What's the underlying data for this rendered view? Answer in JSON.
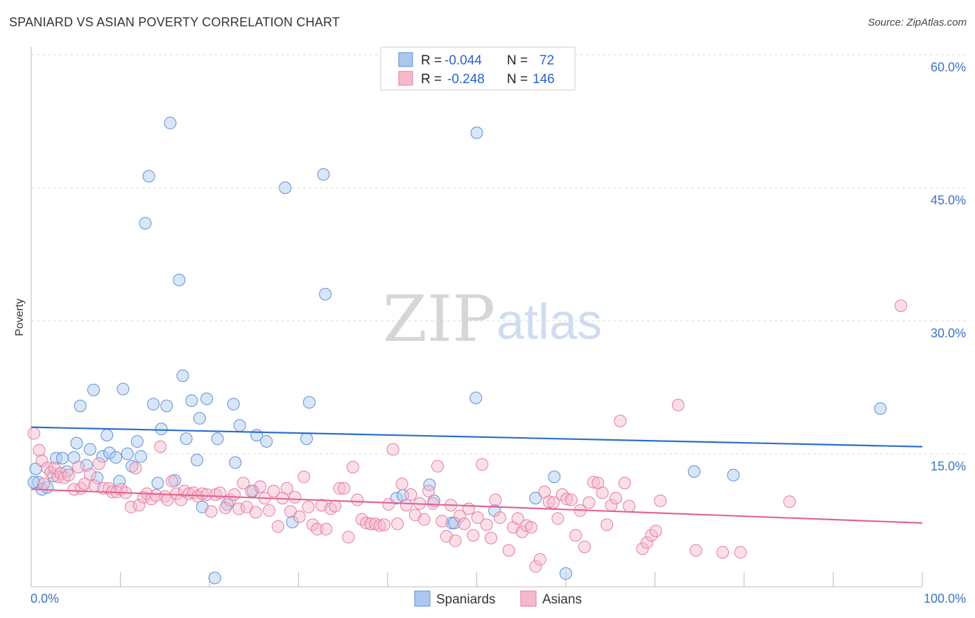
{
  "header": {
    "title": "SPANIARD VS ASIAN POVERTY CORRELATION CHART",
    "source": "Source: ZipAtlas.com"
  },
  "watermark": {
    "zip": "ZIP",
    "atlas": "atlas"
  },
  "colors": {
    "spaniards_fill": "#a9c7ef",
    "spaniards_stroke": "#5e8fd6",
    "spaniards_line": "#2a6dcc",
    "asians_fill": "#f6b9cb",
    "asians_stroke": "#e57b9e",
    "asians_line": "#e2658f",
    "tick_label": "#3b73c8",
    "grid": "#d9d9d9"
  },
  "legend": {
    "rows": [
      {
        "series": "spaniards",
        "r_label": "R =",
        "r_value": "-0.044",
        "n_label": "N =",
        "n_value": "72"
      },
      {
        "series": "asians",
        "r_label": "R =",
        "r_value": "-0.248",
        "n_label": "N =",
        "n_value": "146"
      }
    ]
  },
  "chart_data": {
    "type": "scatter",
    "title": "SPANIARD VS ASIAN POVERTY CORRELATION CHART",
    "xlabel": "",
    "ylabel": "Poverty",
    "xlim": [
      0,
      100
    ],
    "ylim": [
      0,
      60
    ],
    "x_tick_labels": [
      "0.0%",
      "100.0%"
    ],
    "y_tick_labels": [
      "15.0%",
      "30.0%",
      "45.0%",
      "60.0%"
    ],
    "y_ticks": [
      15,
      30,
      45,
      60
    ],
    "grid": true,
    "legend_position": "top-center",
    "bottom_legend": [
      "Spaniards",
      "Asians"
    ],
    "series": [
      {
        "name": "Spaniards",
        "color": "#a9c7ef",
        "trend": {
          "x": [
            0,
            100
          ],
          "y": [
            18.0,
            15.8
          ]
        },
        "points": [
          [
            0.5,
            13.3
          ],
          [
            0.8,
            11.8
          ],
          [
            1.2,
            11.0
          ],
          [
            1.8,
            11.2
          ],
          [
            2.5,
            12.5
          ],
          [
            2.8,
            14.5
          ],
          [
            3.5,
            14.5
          ],
          [
            4.0,
            13.0
          ],
          [
            4.8,
            14.6
          ],
          [
            5.1,
            16.2
          ],
          [
            5.5,
            20.4
          ],
          [
            6.2,
            13.7
          ],
          [
            6.6,
            15.5
          ],
          [
            7.0,
            22.2
          ],
          [
            7.4,
            12.3
          ],
          [
            8.0,
            14.7
          ],
          [
            8.5,
            17.1
          ],
          [
            8.8,
            15.1
          ],
          [
            9.5,
            14.6
          ],
          [
            9.9,
            11.9
          ],
          [
            10.3,
            22.3
          ],
          [
            10.8,
            15.0
          ],
          [
            11.3,
            13.6
          ],
          [
            11.9,
            16.4
          ],
          [
            12.3,
            14.7
          ],
          [
            12.8,
            41.0
          ],
          [
            13.2,
            46.3
          ],
          [
            13.7,
            20.6
          ],
          [
            14.2,
            11.7
          ],
          [
            14.6,
            17.8
          ],
          [
            15.2,
            20.4
          ],
          [
            15.6,
            52.3
          ],
          [
            16.1,
            12.0
          ],
          [
            16.6,
            34.6
          ],
          [
            17.0,
            23.8
          ],
          [
            17.4,
            16.7
          ],
          [
            18.0,
            21.0
          ],
          [
            18.6,
            14.3
          ],
          [
            18.9,
            19.0
          ],
          [
            19.2,
            9.0
          ],
          [
            19.7,
            21.2
          ],
          [
            20.6,
            1.0
          ],
          [
            20.9,
            16.7
          ],
          [
            22.0,
            9.3
          ],
          [
            22.7,
            20.6
          ],
          [
            22.9,
            14.0
          ],
          [
            23.4,
            18.2
          ],
          [
            24.9,
            10.8
          ],
          [
            25.3,
            17.1
          ],
          [
            26.4,
            16.4
          ],
          [
            28.5,
            45.0
          ],
          [
            29.3,
            7.3
          ],
          [
            30.9,
            16.7
          ],
          [
            31.2,
            20.8
          ],
          [
            32.8,
            46.5
          ],
          [
            33.0,
            33.0
          ],
          [
            41.0,
            10.0
          ],
          [
            41.7,
            10.3
          ],
          [
            44.7,
            11.5
          ],
          [
            45.2,
            9.7
          ],
          [
            47.2,
            7.2
          ],
          [
            47.5,
            7.2
          ],
          [
            49.9,
            21.3
          ],
          [
            50.0,
            51.2
          ],
          [
            52.0,
            8.6
          ],
          [
            56.6,
            10.0
          ],
          [
            58.7,
            12.4
          ],
          [
            60.0,
            1.5
          ],
          [
            74.4,
            13.0
          ],
          [
            78.8,
            12.6
          ],
          [
            95.3,
            20.1
          ],
          [
            0.3,
            11.8
          ]
        ]
      },
      {
        "name": "Asians",
        "color": "#f6b9cb",
        "trend": {
          "x": [
            0,
            100
          ],
          "y": [
            11.0,
            7.2
          ]
        },
        "points": [
          [
            0.3,
            17.3
          ],
          [
            0.9,
            15.4
          ],
          [
            1.2,
            14.2
          ],
          [
            1.4,
            11.6
          ],
          [
            1.8,
            13.4
          ],
          [
            2.2,
            12.9
          ],
          [
            2.6,
            13.4
          ],
          [
            3.0,
            12.4
          ],
          [
            3.3,
            12.8
          ],
          [
            3.7,
            12.3
          ],
          [
            4.2,
            12.6
          ],
          [
            4.8,
            11.0
          ],
          [
            5.3,
            13.5
          ],
          [
            5.6,
            11.1
          ],
          [
            6.0,
            11.6
          ],
          [
            6.6,
            12.7
          ],
          [
            7.1,
            11.4
          ],
          [
            7.6,
            13.9
          ],
          [
            8.1,
            11.1
          ],
          [
            8.7,
            11.1
          ],
          [
            9.1,
            10.7
          ],
          [
            9.6,
            10.7
          ],
          [
            10.1,
            11.0
          ],
          [
            10.6,
            10.6
          ],
          [
            11.2,
            9.0
          ],
          [
            11.7,
            13.4
          ],
          [
            12.1,
            9.2
          ],
          [
            12.6,
            10.1
          ],
          [
            13.0,
            10.5
          ],
          [
            13.5,
            9.9
          ],
          [
            14.0,
            10.3
          ],
          [
            14.5,
            15.8
          ],
          [
            15.0,
            10.2
          ],
          [
            15.3,
            9.8
          ],
          [
            15.8,
            11.9
          ],
          [
            16.3,
            10.5
          ],
          [
            16.8,
            9.8
          ],
          [
            17.2,
            10.8
          ],
          [
            17.7,
            10.5
          ],
          [
            18.2,
            10.6
          ],
          [
            18.7,
            10.2
          ],
          [
            19.2,
            10.5
          ],
          [
            19.7,
            10.4
          ],
          [
            20.2,
            8.5
          ],
          [
            20.7,
            10.4
          ],
          [
            21.2,
            10.6
          ],
          [
            21.8,
            8.9
          ],
          [
            22.3,
            9.8
          ],
          [
            22.8,
            10.4
          ],
          [
            23.3,
            8.8
          ],
          [
            23.8,
            11.7
          ],
          [
            24.2,
            9.0
          ],
          [
            24.7,
            10.8
          ],
          [
            25.2,
            8.4
          ],
          [
            25.7,
            11.3
          ],
          [
            26.2,
            10.0
          ],
          [
            26.7,
            8.6
          ],
          [
            27.2,
            10.8
          ],
          [
            27.7,
            6.8
          ],
          [
            28.2,
            10.0
          ],
          [
            28.7,
            11.1
          ],
          [
            29.1,
            8.5
          ],
          [
            29.6,
            10.1
          ],
          [
            30.1,
            7.9
          ],
          [
            30.6,
            12.4
          ],
          [
            31.1,
            9.0
          ],
          [
            31.6,
            7.0
          ],
          [
            32.1,
            6.5
          ],
          [
            32.6,
            9.2
          ],
          [
            33.1,
            6.5
          ],
          [
            33.6,
            8.8
          ],
          [
            34.1,
            9.1
          ],
          [
            34.6,
            11.1
          ],
          [
            35.1,
            11.1
          ],
          [
            35.6,
            5.6
          ],
          [
            36.1,
            13.5
          ],
          [
            36.6,
            9.8
          ],
          [
            37.1,
            7.6
          ],
          [
            37.6,
            7.2
          ],
          [
            38.1,
            7.1
          ],
          [
            38.6,
            7.1
          ],
          [
            39.1,
            6.9
          ],
          [
            39.6,
            7.0
          ],
          [
            40.1,
            9.3
          ],
          [
            40.6,
            15.5
          ],
          [
            41.1,
            7.1
          ],
          [
            41.6,
            11.6
          ],
          [
            42.1,
            9.2
          ],
          [
            42.6,
            10.4
          ],
          [
            43.1,
            8.1
          ],
          [
            43.6,
            9.4
          ],
          [
            44.1,
            7.6
          ],
          [
            44.6,
            10.8
          ],
          [
            45.1,
            9.4
          ],
          [
            45.6,
            13.6
          ],
          [
            46.1,
            7.4
          ],
          [
            46.6,
            5.7
          ],
          [
            47.1,
            9.2
          ],
          [
            47.6,
            5.2
          ],
          [
            48.1,
            8.0
          ],
          [
            48.6,
            7.1
          ],
          [
            49.1,
            8.8
          ],
          [
            49.6,
            5.8
          ],
          [
            50.1,
            7.8
          ],
          [
            50.6,
            13.8
          ],
          [
            51.1,
            7.0
          ],
          [
            51.6,
            5.5
          ],
          [
            52.1,
            9.8
          ],
          [
            52.6,
            7.8
          ],
          [
            53.6,
            4.1
          ],
          [
            54.1,
            6.7
          ],
          [
            54.6,
            7.7
          ],
          [
            55.1,
            6.2
          ],
          [
            55.6,
            6.9
          ],
          [
            56.1,
            6.7
          ],
          [
            56.6,
            2.3
          ],
          [
            57.1,
            3.1
          ],
          [
            57.6,
            10.7
          ],
          [
            58.1,
            9.6
          ],
          [
            58.6,
            9.5
          ],
          [
            59.1,
            7.7
          ],
          [
            59.6,
            10.4
          ],
          [
            60.1,
            9.9
          ],
          [
            60.6,
            9.8
          ],
          [
            61.1,
            5.8
          ],
          [
            61.6,
            8.6
          ],
          [
            62.1,
            4.5
          ],
          [
            62.6,
            9.5
          ],
          [
            63.1,
            11.8
          ],
          [
            63.6,
            11.7
          ],
          [
            64.1,
            10.6
          ],
          [
            64.6,
            7.0
          ],
          [
            65.1,
            9.2
          ],
          [
            65.6,
            10.0
          ],
          [
            66.1,
            18.7
          ],
          [
            66.6,
            11.7
          ],
          [
            67.1,
            9.1
          ],
          [
            68.6,
            4.3
          ],
          [
            69.1,
            5.0
          ],
          [
            69.6,
            5.8
          ],
          [
            70.1,
            6.3
          ],
          [
            70.6,
            9.7
          ],
          [
            72.6,
            20.5
          ],
          [
            74.6,
            4.1
          ],
          [
            77.6,
            3.9
          ],
          [
            79.6,
            3.9
          ],
          [
            85.1,
            9.6
          ],
          [
            97.6,
            31.7
          ]
        ]
      }
    ]
  }
}
